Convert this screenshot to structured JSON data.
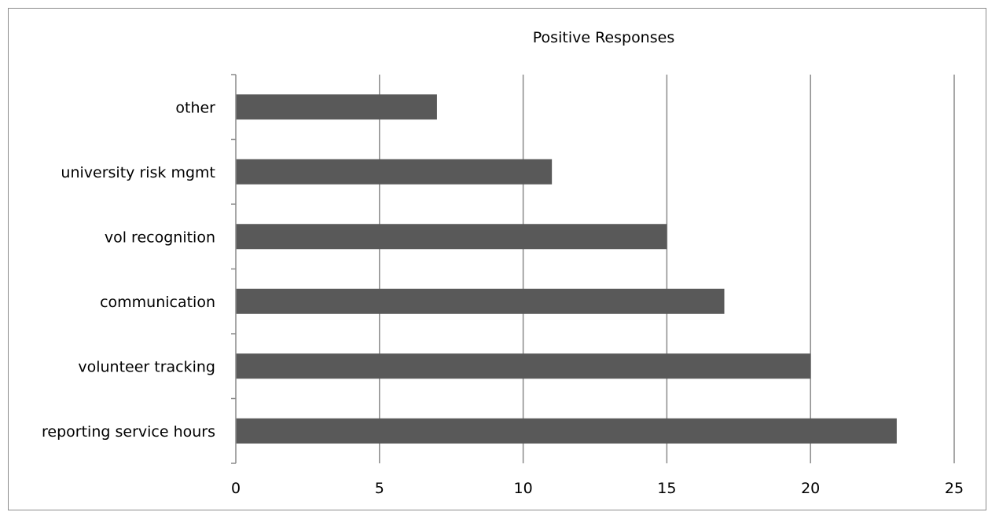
{
  "chart_data": {
    "type": "bar",
    "orientation": "horizontal",
    "title": "Positive Responses",
    "categories": [
      "other",
      "university risk mgmt",
      "vol recognition",
      "communication",
      "volunteer tracking",
      "reporting service hours"
    ],
    "values": [
      7,
      11,
      15,
      17,
      20,
      23
    ],
    "xlim": [
      0,
      25
    ],
    "xticks": [
      "0",
      "5",
      "10",
      "15",
      "20",
      "25"
    ],
    "xlabel": "",
    "ylabel": "",
    "grid": true,
    "legend": "none",
    "colors": {
      "bar": "#595959",
      "grid": "#8a8a8a",
      "axis": "#8a8a8a"
    }
  }
}
